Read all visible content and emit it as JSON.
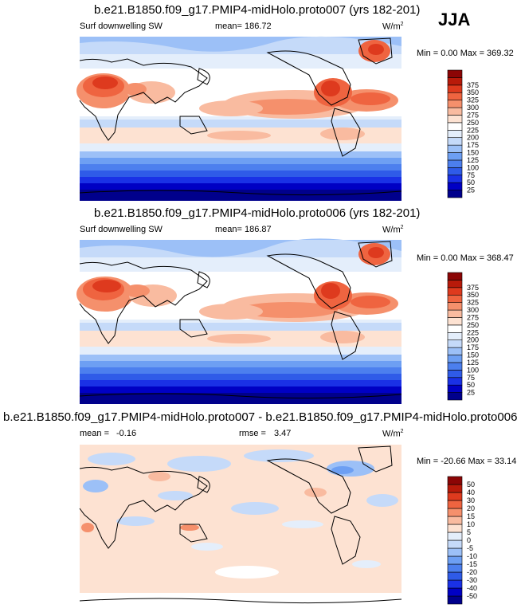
{
  "season": "JJA",
  "panels": [
    {
      "title": "b.e21.B1850.f09_g17.PMIP4-midHolo.proto007 (yrs 182-201)",
      "variable": "Surf downwelling SW",
      "stat1_label": "mean=",
      "stat1_value": "186.72",
      "units": "W/m",
      "units_exp": "2",
      "minmax": "Min =   0.00 Max = 369.32",
      "levels": [
        "25",
        "50",
        "75",
        "100",
        "125",
        "150",
        "175",
        "200",
        "225",
        "250",
        "275",
        "300",
        "325",
        "350",
        "375"
      ],
      "colors": [
        "#00008c",
        "#0000c4",
        "#1a31e6",
        "#2f5be8",
        "#4c7fee",
        "#6d9ff3",
        "#9cc0f7",
        "#c5daf9",
        "#e4eefb",
        "#ffffff",
        "#fde2d2",
        "#f9bba0",
        "#f5906c",
        "#ef6440",
        "#de3a1e",
        "#b81a0a",
        "#8c0505"
      ]
    },
    {
      "title": "b.e21.B1850.f09_g17.PMIP4-midHolo.proto006 (yrs 182-201)",
      "variable": "Surf downwelling SW",
      "stat1_label": "mean=",
      "stat1_value": "186.87",
      "units": "W/m",
      "units_exp": "2",
      "minmax": "Min =   0.00 Max = 368.47",
      "levels": [
        "25",
        "50",
        "75",
        "100",
        "125",
        "150",
        "175",
        "200",
        "225",
        "250",
        "275",
        "300",
        "325",
        "350",
        "375"
      ],
      "colors": [
        "#00008c",
        "#0000c4",
        "#1a31e6",
        "#2f5be8",
        "#4c7fee",
        "#6d9ff3",
        "#9cc0f7",
        "#c5daf9",
        "#e4eefb",
        "#ffffff",
        "#fde2d2",
        "#f9bba0",
        "#f5906c",
        "#ef6440",
        "#de3a1e",
        "#b81a0a",
        "#8c0505"
      ]
    },
    {
      "title": "b.e21.B1850.f09_g17.PMIP4-midHolo.proto007 - b.e21.B1850.f09_g17.PMIP4-midHolo.proto006",
      "stat1_label": "mean =",
      "stat1_value": "-0.16",
      "stat2_label": "rmse =",
      "stat2_value": "3.47",
      "units": "W/m",
      "units_exp": "2",
      "minmax": "Min = -20.66 Max =  33.14",
      "levels": [
        "-50",
        "-40",
        "-30",
        "-20",
        "-15",
        "-10",
        "-5",
        "0",
        "5",
        "10",
        "15",
        "20",
        "30",
        "40",
        "50"
      ],
      "colors": [
        "#00008c",
        "#0000c4",
        "#1a31e6",
        "#2f5be8",
        "#4c7fee",
        "#6d9ff3",
        "#9cc0f7",
        "#c5daf9",
        "#e4eefb",
        "#fde2d2",
        "#f9bba0",
        "#f5906c",
        "#ef6440",
        "#de3a1e",
        "#b81a0a",
        "#8c0505"
      ]
    }
  ],
  "chart_data": [
    {
      "type": "heatmap",
      "title": "b.e21.B1850.f09_g17.PMIP4-midHolo.proto007 (yrs 182-201)",
      "variable": "Surf downwelling SW",
      "units": "W/m2",
      "mean": 186.72,
      "min": 0.0,
      "max": 369.32,
      "contour_levels": [
        25,
        50,
        75,
        100,
        125,
        150,
        175,
        200,
        225,
        250,
        275,
        300,
        325,
        350,
        375
      ],
      "colorbar_range": [
        0,
        400
      ]
    },
    {
      "type": "heatmap",
      "title": "b.e21.B1850.f09_g17.PMIP4-midHolo.proto006 (yrs 182-201)",
      "variable": "Surf downwelling SW",
      "units": "W/m2",
      "mean": 186.87,
      "min": 0.0,
      "max": 368.47,
      "contour_levels": [
        25,
        50,
        75,
        100,
        125,
        150,
        175,
        200,
        225,
        250,
        275,
        300,
        325,
        350,
        375
      ],
      "colorbar_range": [
        0,
        400
      ]
    },
    {
      "type": "heatmap",
      "title": "b.e21.B1850.f09_g17.PMIP4-midHolo.proto007 - b.e21.B1850.f09_g17.PMIP4-midHolo.proto006",
      "units": "W/m2",
      "mean": -0.16,
      "rmse": 3.47,
      "min": -20.66,
      "max": 33.14,
      "contour_levels": [
        -50,
        -40,
        -30,
        -20,
        -15,
        -10,
        -5,
        0,
        5,
        10,
        15,
        20,
        30,
        40,
        50
      ],
      "colorbar_range": [
        -60,
        60
      ]
    }
  ]
}
